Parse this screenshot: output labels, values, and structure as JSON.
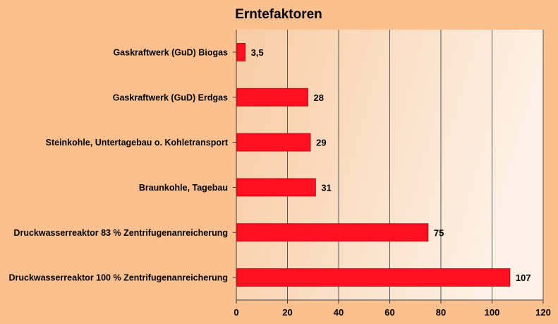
{
  "chart_data": {
    "type": "bar",
    "orientation": "horizontal",
    "title": "Erntefaktoren",
    "xlabel": "",
    "ylabel": "",
    "categories": [
      "Gaskraftwerk (GuD) Biogas",
      "Gaskraftwerk (GuD) Erdgas",
      "Steinkohle, Untertagebau o. Kohletransport",
      "Braunkohle, Tagebau",
      "Druckwasserreaktor 83 % Zentrifugenanreicherung",
      "Druckwasserreaktor 100 % Zentrifugenanreicherung"
    ],
    "values": [
      3.5,
      28,
      29,
      31,
      75,
      107
    ],
    "value_labels": [
      "3,5",
      "28",
      "29",
      "31",
      "75",
      "107"
    ],
    "xlim": [
      0,
      120
    ],
    "xticks": [
      0,
      20,
      40,
      60,
      80,
      100,
      120
    ],
    "grid": true,
    "legend": "none",
    "colors": {
      "bar": "#ff1020",
      "bar_edge": "#b00010",
      "background": "#fbc08e",
      "plot_left": "#f8cba3",
      "plot_right": "#fdf1e6",
      "grid": "#555555"
    }
  }
}
